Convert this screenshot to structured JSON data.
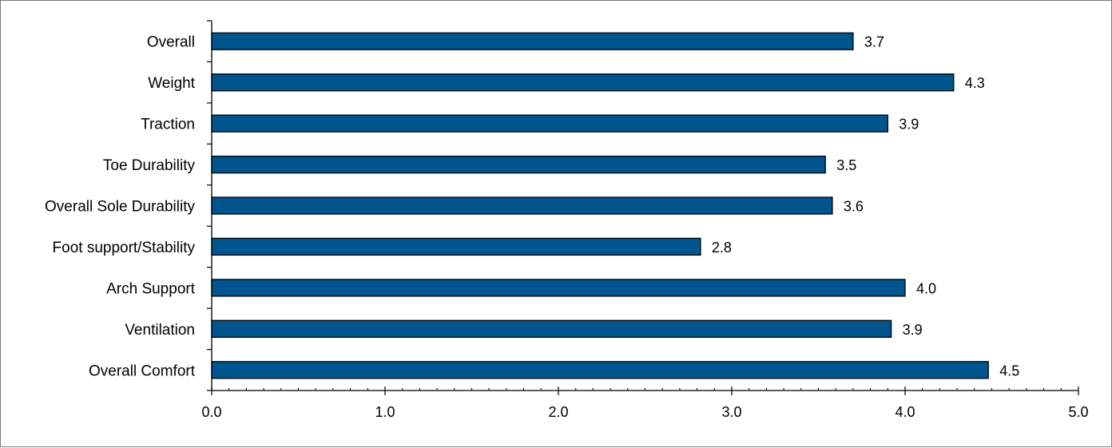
{
  "chart_data": {
    "type": "bar",
    "orientation": "horizontal",
    "categories": [
      "Overall",
      "Weight",
      "Traction",
      "Toe Durability",
      "Overall Sole Durability",
      "Foot support/Stability",
      "Arch Support",
      "Ventilation",
      "Overall Comfort"
    ],
    "values": [
      3.7,
      4.28,
      3.9,
      3.54,
      3.58,
      2.82,
      4.0,
      3.92,
      4.48
    ],
    "value_labels": [
      "3.7",
      "4.3",
      "3.9",
      "3.5",
      "3.6",
      "2.8",
      "4.0",
      "3.9",
      "4.5"
    ],
    "x_ticks": [
      "0.0",
      "1.0",
      "2.0",
      "3.0",
      "4.0",
      "5.0"
    ],
    "xlim": [
      0,
      5
    ],
    "title": "",
    "xlabel": "",
    "ylabel": "",
    "grid": false,
    "legend": "none",
    "bar_color": "#00558f",
    "bar_edge_color": "#000000"
  }
}
